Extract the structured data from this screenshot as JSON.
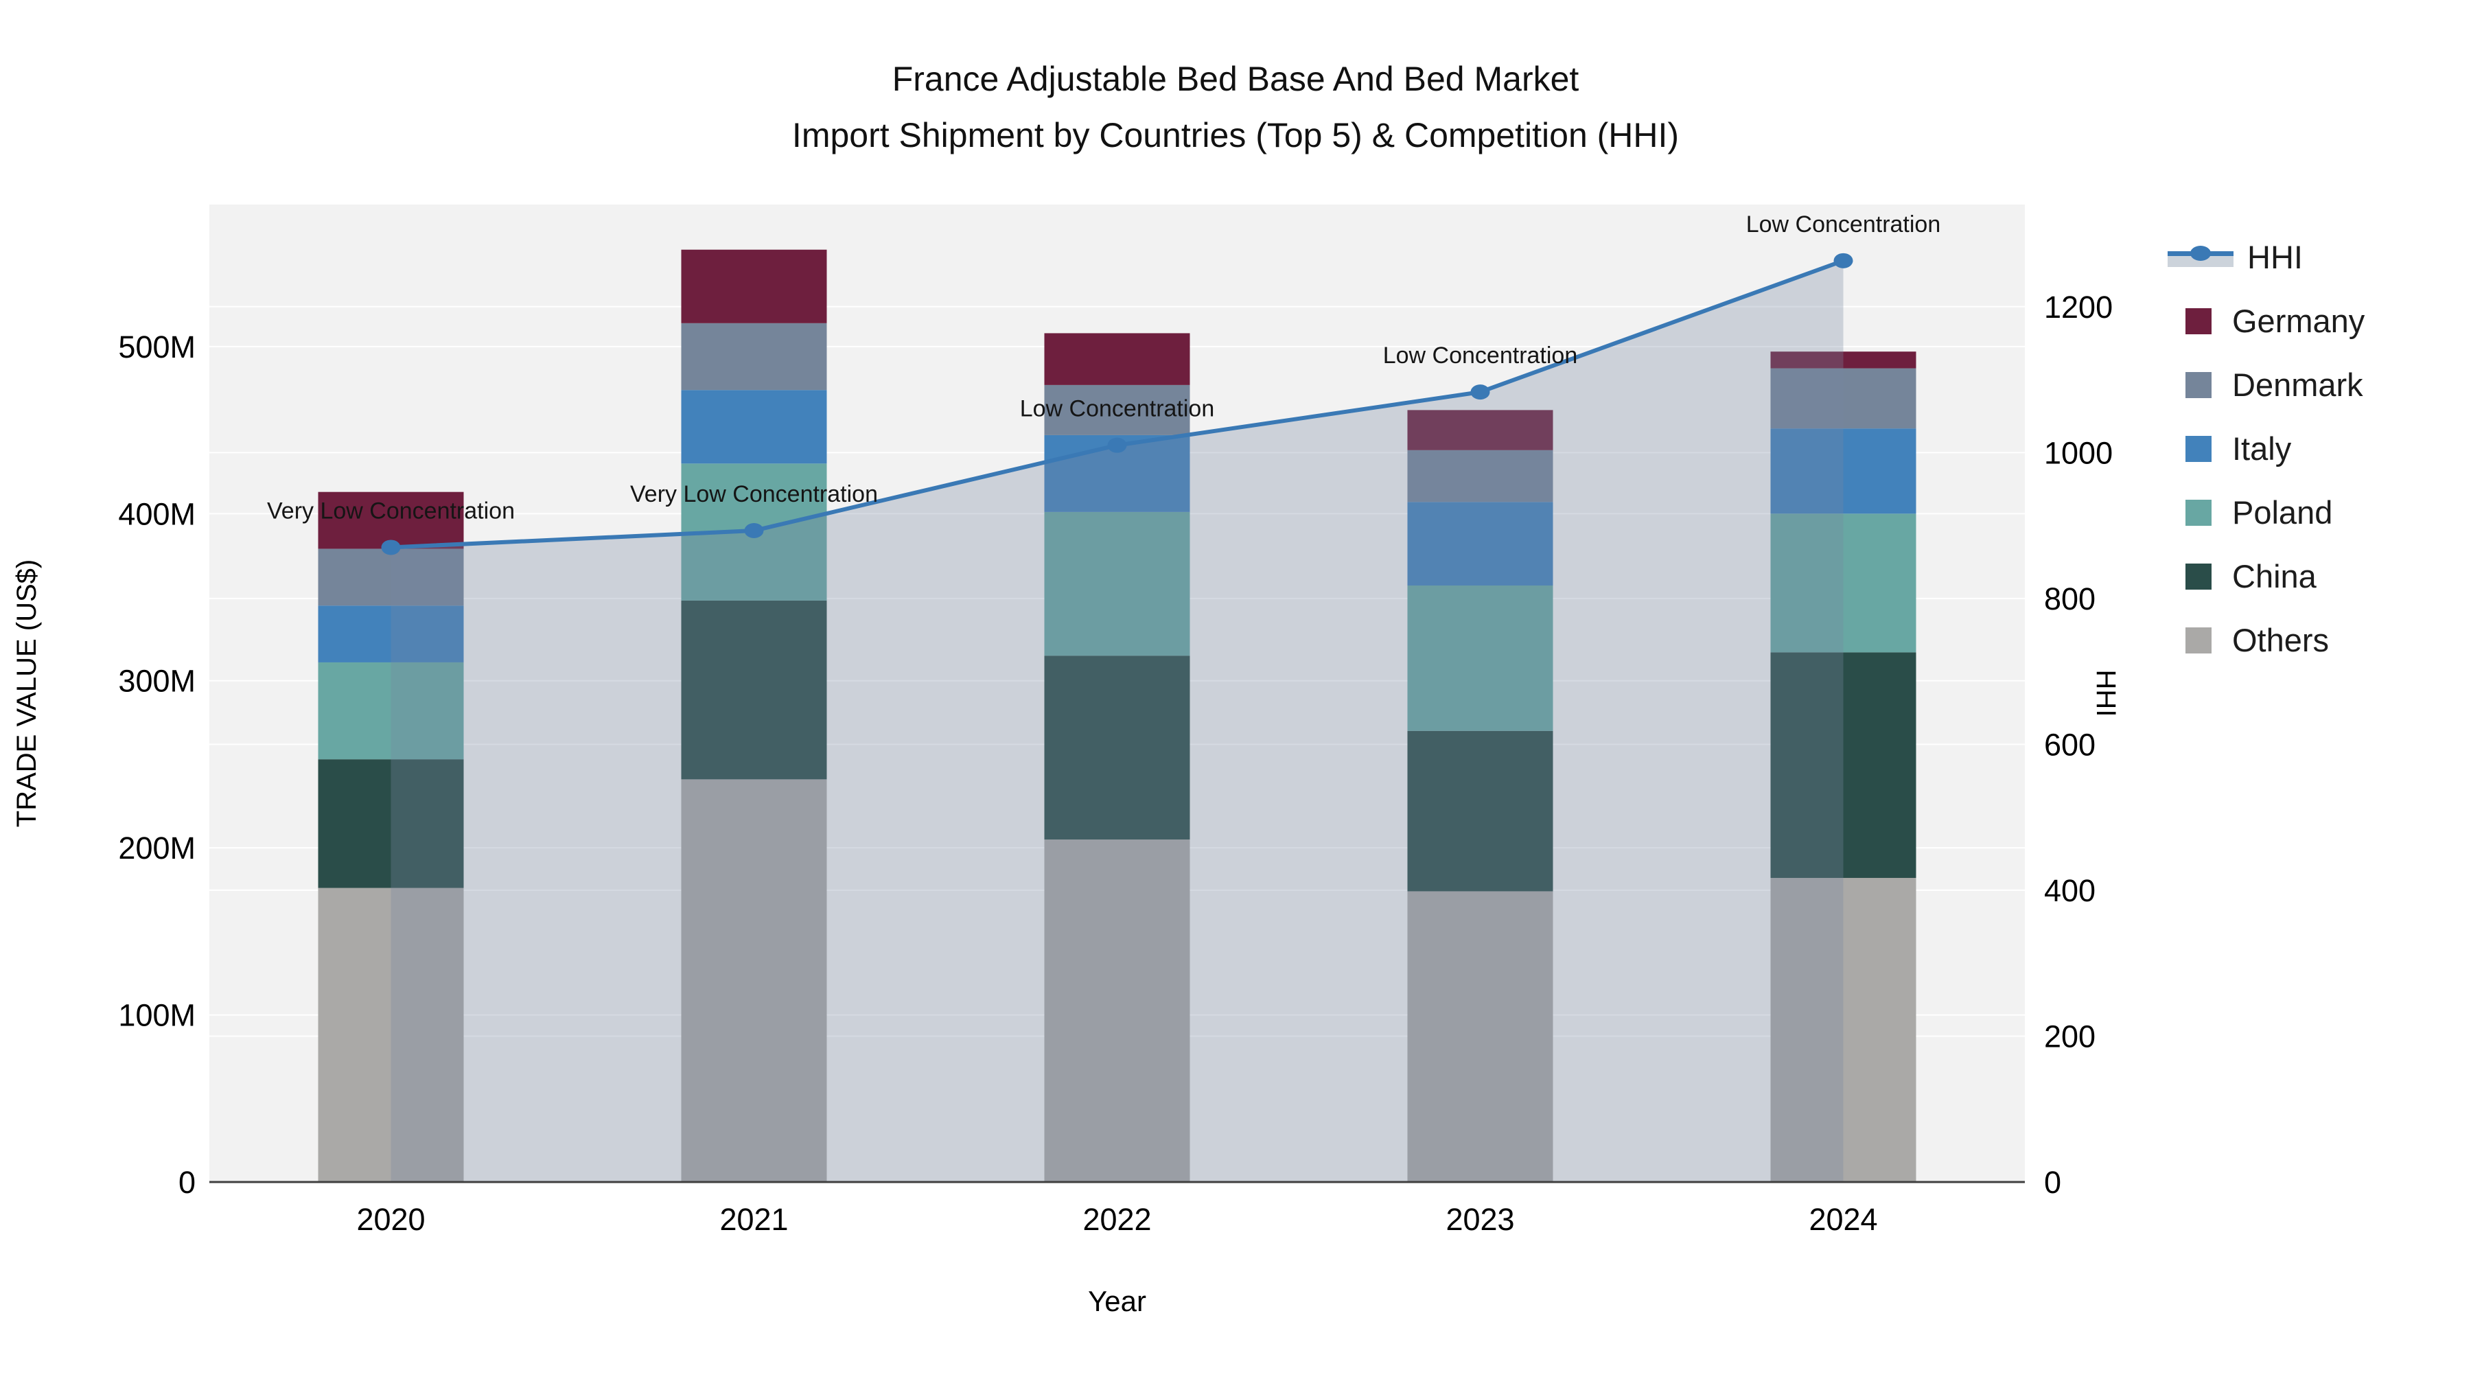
{
  "title": {
    "line1": "France Adjustable Bed Base And Bed Market",
    "line2": "Import Shipment by Countries (Top 5) & Competition (HHI)"
  },
  "legend": {
    "items": [
      {
        "id": "hhi",
        "label": "HHI",
        "type": "line",
        "color": "#3a79b5",
        "band_color": "#ccd3db"
      },
      {
        "id": "germany",
        "label": "Germany",
        "type": "swatch",
        "color": "#6e1f3e"
      },
      {
        "id": "denmark",
        "label": "Denmark",
        "type": "swatch",
        "color": "#75859a"
      },
      {
        "id": "italy",
        "label": "Italy",
        "type": "swatch",
        "color": "#4282bb"
      },
      {
        "id": "poland",
        "label": "Poland",
        "type": "swatch",
        "color": "#68a7a3"
      },
      {
        "id": "china",
        "label": "China",
        "type": "swatch",
        "color": "#2a4d49"
      },
      {
        "id": "others",
        "label": "Others",
        "type": "swatch",
        "color": "#aaa9a7"
      }
    ]
  },
  "chart_data": {
    "type": "bar",
    "subtype": "stacked-bars-with-hhi-line-and-area",
    "title": "France Adjustable Bed Base And Bed Market Import Shipment by Countries (Top 5) & Competition (HHI)",
    "categories": [
      "2020",
      "2021",
      "2022",
      "2023",
      "2024"
    ],
    "series": [
      {
        "name": "Others",
        "color": "#aaa9a7",
        "values": [
          176,
          241,
          205,
          174,
          182
        ]
      },
      {
        "name": "China",
        "color": "#2a4d49",
        "values": [
          77,
          107,
          110,
          96,
          135
        ]
      },
      {
        "name": "Poland",
        "color": "#68a7a3",
        "values": [
          58,
          82,
          86,
          87,
          83
        ]
      },
      {
        "name": "Italy",
        "color": "#4282bb",
        "values": [
          34,
          44,
          46,
          50,
          51
        ]
      },
      {
        "name": "Denmark",
        "color": "#75859a",
        "values": [
          34,
          40,
          30,
          31,
          36
        ]
      },
      {
        "name": "Germany",
        "color": "#6e1f3e",
        "values": [
          34,
          44,
          31,
          24,
          10
        ]
      }
    ],
    "stacked_totals_musd": [
      413,
      558,
      508,
      462,
      497
    ],
    "line_series": {
      "name": "HHI",
      "color": "#3a79b5",
      "area_fill": "rgba(121,137,163,0.31)",
      "values": [
        870,
        893,
        1010,
        1083,
        1263
      ]
    },
    "annotations": [
      {
        "category": "2020",
        "text": "Very Low Concentration"
      },
      {
        "category": "2021",
        "text": "Very Low Concentration"
      },
      {
        "category": "2022",
        "text": "Low Concentration"
      },
      {
        "category": "2023",
        "text": "Low Concentration"
      },
      {
        "category": "2024",
        "text": "Low Concentration"
      }
    ],
    "x_axis": {
      "title": "Year",
      "tick_labels": [
        "2020",
        "2021",
        "2022",
        "2023",
        "2024"
      ]
    },
    "left_axis": {
      "title": "TRADE VALUE (US$)",
      "tick_labels": [
        "0",
        "100M",
        "200M",
        "300M",
        "400M",
        "500M"
      ],
      "tick_values": [
        0,
        100,
        200,
        300,
        400,
        500
      ],
      "max": 585
    },
    "right_axis": {
      "title": "HHI",
      "tick_labels": [
        "0",
        "200",
        "400",
        "600",
        "800",
        "1000",
        "1200"
      ],
      "tick_values": [
        0,
        200,
        400,
        600,
        800,
        1000,
        1200
      ],
      "max": 1340
    },
    "grid_on": true,
    "legend_position": "right",
    "plot_bg": "#f2f2f2",
    "grid_color": "#ffffff",
    "axis_line_color": "#3f3f3f",
    "text_color": "#151515"
  }
}
